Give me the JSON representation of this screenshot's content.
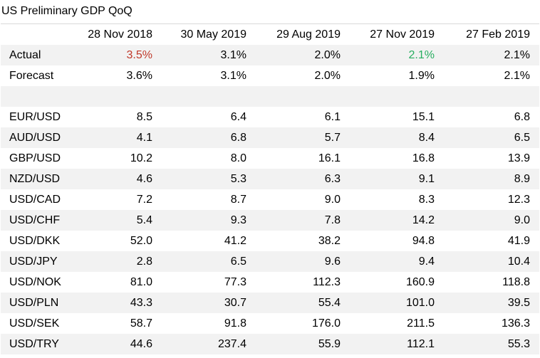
{
  "chart_data": {
    "type": "table",
    "title": "US Preliminary GDP QoQ",
    "colors": {
      "red": "#c0392b",
      "green": "#27ae60",
      "band": "#f2f2f2"
    },
    "columns": [
      "28 Nov 2018",
      "30 May 2019",
      "29 Aug 2019",
      "27 Nov 2019",
      "27 Feb 2019"
    ],
    "gdp_rows": [
      {
        "label": "Actual",
        "values": [
          "3.5%",
          "3.1%",
          "2.0%",
          "2.1%",
          "2.1%"
        ],
        "colors": [
          "#c0392b",
          "",
          "",
          "#27ae60",
          ""
        ]
      },
      {
        "label": "Forecast",
        "values": [
          "3.6%",
          "3.1%",
          "2.0%",
          "1.9%",
          "2.1%"
        ],
        "colors": [
          "",
          "",
          "",
          "",
          ""
        ]
      }
    ],
    "pair_rows": [
      {
        "label": "EUR/USD",
        "values": [
          "8.5",
          "6.4",
          "6.1",
          "15.1",
          "6.8"
        ]
      },
      {
        "label": "AUD/USD",
        "values": [
          "4.1",
          "6.8",
          "5.7",
          "8.4",
          "6.5"
        ]
      },
      {
        "label": "GBP/USD",
        "values": [
          "10.2",
          "8.0",
          "16.1",
          "16.8",
          "13.9"
        ]
      },
      {
        "label": "NZD/USD",
        "values": [
          "4.6",
          "5.3",
          "6.3",
          "9.1",
          "8.9"
        ]
      },
      {
        "label": "USD/CAD",
        "values": [
          "7.2",
          "8.7",
          "9.0",
          "8.3",
          "12.3"
        ]
      },
      {
        "label": "USD/CHF",
        "values": [
          "5.4",
          "9.3",
          "7.8",
          "14.2",
          "9.0"
        ]
      },
      {
        "label": "USD/DKK",
        "values": [
          "52.0",
          "41.2",
          "38.2",
          "94.8",
          "41.9"
        ]
      },
      {
        "label": "USD/JPY",
        "values": [
          "2.8",
          "6.5",
          "9.6",
          "9.4",
          "10.4"
        ]
      },
      {
        "label": "USD/NOK",
        "values": [
          "81.0",
          "77.3",
          "112.3",
          "160.9",
          "118.8"
        ]
      },
      {
        "label": "USD/PLN",
        "values": [
          "43.3",
          "30.7",
          "55.4",
          "101.0",
          "39.5"
        ]
      },
      {
        "label": "USD/SEK",
        "values": [
          "58.7",
          "91.8",
          "176.0",
          "211.5",
          "136.3"
        ]
      },
      {
        "label": "USD/TRY",
        "values": [
          "44.6",
          "237.4",
          "55.9",
          "112.1",
          "55.3"
        ]
      }
    ]
  }
}
